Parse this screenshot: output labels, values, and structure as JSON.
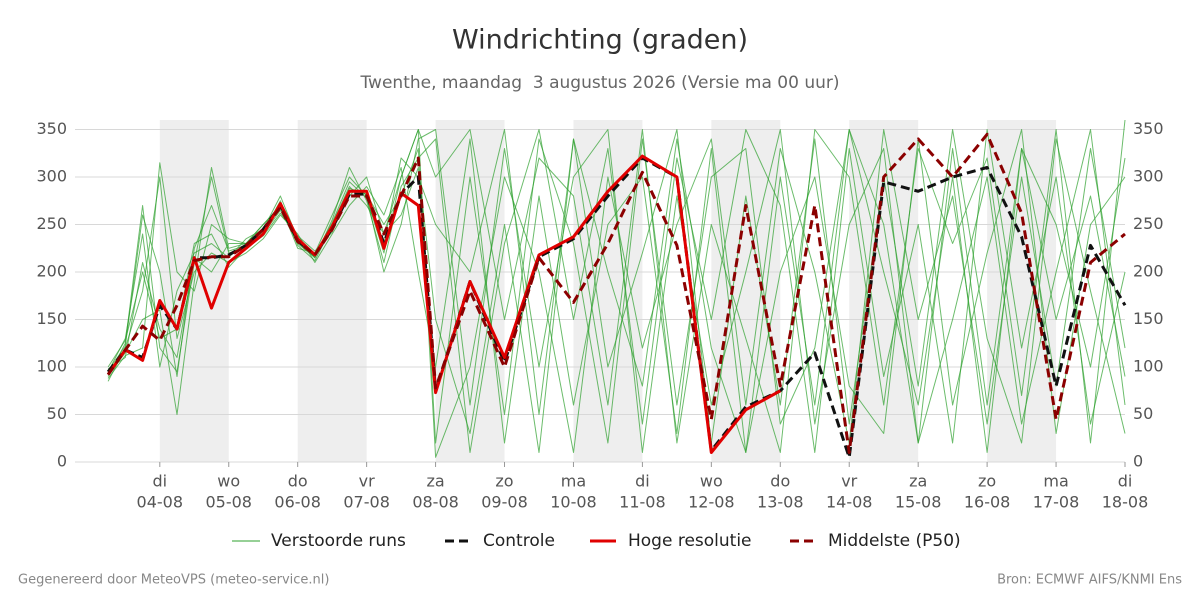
{
  "chart_data": {
    "type": "line",
    "title": "Windrichting (graden)",
    "subtitle": "Twenthe, maandag  3 augustus 2026 (Versie ma 00 uur)",
    "footer_left": "Gegenereerd door MeteoVPS (meteo-service.nl)",
    "footer_right": "Bron: ECMWF AIFS/KNMI Ens",
    "xlim": [
      2.77,
      18
    ],
    "xticks": [
      {
        "value": 4,
        "label": "04-08"
      },
      {
        "value": 5,
        "label": "05-08"
      },
      {
        "value": 6,
        "label": "06-08"
      },
      {
        "value": 7,
        "label": "07-08"
      },
      {
        "value": 8,
        "label": "08-08"
      },
      {
        "value": 9,
        "label": "09-08"
      },
      {
        "value": 10,
        "label": "10-08"
      },
      {
        "value": 11,
        "label": "11-08"
      },
      {
        "value": 12,
        "label": "12-08"
      },
      {
        "value": 13,
        "label": "13-08"
      },
      {
        "value": 14,
        "label": "14-08"
      },
      {
        "value": 15,
        "label": "15-08"
      },
      {
        "value": 16,
        "label": "16-08"
      },
      {
        "value": 17,
        "label": "17-08"
      },
      {
        "value": 18,
        "label": "18-08"
      }
    ],
    "xtick_weekdays": [
      "di",
      "wo",
      "do",
      "vr",
      "za",
      "zo",
      "ma",
      "di",
      "wo",
      "do",
      "vr",
      "za",
      "zo",
      "ma",
      "di"
    ],
    "shaded_days": [
      [
        4,
        5
      ],
      [
        6,
        7
      ],
      [
        8,
        9
      ],
      [
        10,
        11
      ],
      [
        12,
        13
      ],
      [
        14,
        15
      ],
      [
        16,
        17
      ]
    ],
    "ylim": [
      0,
      360
    ],
    "yticks": [
      0,
      50,
      100,
      150,
      200,
      250,
      300,
      350
    ],
    "grid": true,
    "x": [
      3.25,
      3.5,
      3.75,
      4,
      4.25,
      4.5,
      4.75,
      5,
      5.25,
      5.5,
      5.75,
      6,
      6.25,
      6.5,
      6.75,
      7,
      7.25,
      7.5,
      7.75,
      8,
      8.5,
      9,
      9.5,
      10,
      10.5,
      11,
      11.5,
      12,
      12.5,
      13,
      13.5,
      14,
      14.5,
      15,
      15.5,
      16,
      16.5,
      17,
      17.5,
      18
    ],
    "ensemble": {
      "name": "Verstoorde runs",
      "color": "#2ca02c",
      "members": [
        [
          90,
          125,
          270,
          120,
          95,
          210,
          300,
          220,
          225,
          240,
          265,
          230,
          215,
          250,
          290,
          270,
          240,
          300,
          350,
          20,
          300,
          50,
          340,
          230,
          20,
          340,
          60,
          300,
          330,
          40,
          120,
          350,
          200,
          60,
          300,
          10,
          330,
          250,
          100,
          320
        ],
        [
          98,
          110,
          210,
          140,
          110,
          215,
          200,
          230,
          230,
          250,
          270,
          225,
          220,
          260,
          300,
          280,
          200,
          250,
          340,
          350,
          60,
          330,
          100,
          300,
          350,
          10,
          280,
          60,
          200,
          350,
          40,
          250,
          330,
          20,
          150,
          300,
          40,
          200,
          350,
          60
        ],
        [
          85,
          120,
          180,
          300,
          130,
          200,
          220,
          210,
          220,
          235,
          260,
          240,
          210,
          240,
          270,
          290,
          260,
          310,
          200,
          100,
          340,
          20,
          280,
          60,
          250,
          300,
          30,
          330,
          10,
          200,
          300,
          80,
          30,
          340,
          60,
          220,
          350,
          30,
          250,
          300
        ],
        [
          95,
          130,
          240,
          100,
          180,
          220,
          230,
          215,
          235,
          245,
          280,
          235,
          215,
          255,
          310,
          275,
          210,
          290,
          320,
          340,
          10,
          230,
          350,
          150,
          330,
          40,
          320,
          150,
          350,
          270,
          10,
          330,
          90,
          250,
          20,
          350,
          120,
          300,
          40,
          200
        ],
        [
          92,
          115,
          150,
          160,
          50,
          190,
          310,
          225,
          230,
          242,
          275,
          228,
          212,
          248,
          285,
          285,
          230,
          320,
          300,
          250,
          200,
          350,
          50,
          340,
          100,
          220,
          350,
          20,
          280,
          60,
          340,
          40,
          300,
          80,
          350,
          130,
          20,
          340,
          180,
          30
        ],
        [
          100,
          128,
          200,
          130,
          140,
          230,
          240,
          205,
          225,
          238,
          262,
          238,
          222,
          242,
          288,
          282,
          250,
          280,
          330,
          5,
          100,
          300,
          200,
          10,
          300,
          120,
          250,
          340,
          60,
          330,
          200,
          20,
          350,
          150,
          280,
          40,
          300,
          80,
          330,
          120
        ],
        [
          88,
          112,
          120,
          315,
          200,
          180,
          250,
          235,
          230,
          250,
          268,
          232,
          218,
          252,
          295,
          278,
          220,
          300,
          350,
          300,
          350,
          150,
          320,
          280,
          60,
          350,
          20,
          250,
          130,
          10,
          350,
          300,
          60,
          330,
          230,
          320,
          70,
          350,
          20,
          360
        ],
        [
          96,
          122,
          260,
          200,
          90,
          225,
          270,
          222,
          228,
          244,
          273,
          231,
          216,
          246,
          280,
          300,
          240,
          260,
          310,
          150,
          30,
          250,
          10,
          340,
          200,
          80,
          340,
          120,
          10,
          300,
          60,
          350,
          250,
          20,
          330,
          60,
          330,
          150,
          280,
          90
        ]
      ]
    },
    "series": [
      {
        "name": "Controle",
        "color": "#111111",
        "dash": true,
        "values": [
          95,
          118,
          110,
          165,
          140,
          215,
          215,
          218,
          228,
          245,
          270,
          233,
          218,
          246,
          282,
          282,
          230,
          282,
          300,
          75,
          190,
          105,
          216,
          235,
          280,
          320,
          300,
          12,
          58,
          75,
          115,
          5,
          295,
          285,
          300,
          310,
          237,
          80,
          228,
          165
        ]
      },
      {
        "name": "Hoge resolutie",
        "color": "#e00000",
        "dash": false,
        "values": [
          92,
          118,
          107,
          170,
          140,
          215,
          162,
          210,
          225,
          240,
          272,
          235,
          218,
          248,
          285,
          285,
          225,
          283,
          270,
          73,
          190,
          110,
          218,
          237,
          285,
          322,
          300,
          10,
          55,
          75,
          null,
          null,
          null,
          null,
          null,
          null,
          null,
          null,
          null,
          null
        ]
      },
      {
        "name": "Middelste (P50)",
        "color": "#8b0000",
        "dash": true,
        "values": [
          92,
          118,
          143,
          128,
          165,
          212,
          216,
          216,
          228,
          245,
          268,
          232,
          218,
          245,
          280,
          280,
          240,
          280,
          320,
          78,
          180,
          100,
          215,
          168,
          230,
          305,
          228,
          45,
          270,
          80,
          270,
          10,
          300,
          340,
          300,
          345,
          262,
          45,
          210,
          240
        ]
      }
    ]
  }
}
